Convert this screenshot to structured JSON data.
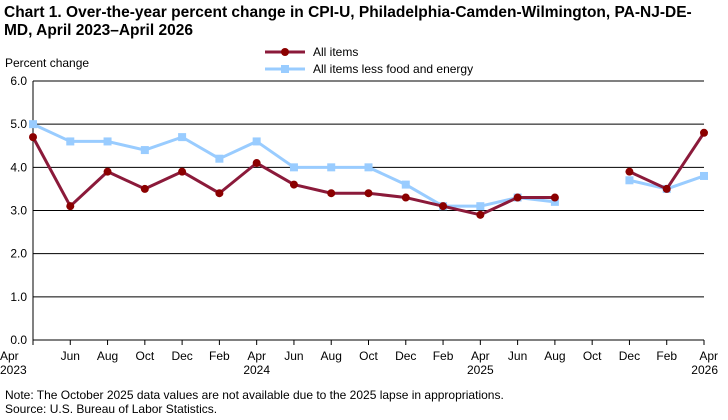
{
  "chart_data": {
    "type": "line",
    "title": "Chart 1. Over-the-year percent change in CPI-U, Philadelphia-Camden-Wilmington,  PA-NJ-DE-MD, April 2023–April  2026",
    "ylabel": "Percent change",
    "xlabel": "",
    "ylim": [
      0.0,
      6.0
    ],
    "yticks": [
      "0.0",
      "1.0",
      "2.0",
      "3.0",
      "4.0",
      "5.0",
      "6.0"
    ],
    "grid": true,
    "legend_placement": "top-center",
    "x_tick_labels": [
      "Apr",
      "Jun",
      "Aug",
      "Oct",
      "Dec",
      "Feb",
      "Apr",
      "Jun",
      "Aug",
      "Oct",
      "Dec",
      "Feb",
      "Apr",
      "Jun",
      "Aug",
      "Oct",
      "Dec",
      "Feb",
      "Apr"
    ],
    "year_labels": [
      {
        "tick_index": 0,
        "label": "2023"
      },
      {
        "tick_index": 6,
        "label": "2024"
      },
      {
        "tick_index": 12,
        "label": "2025"
      },
      {
        "tick_index": 18,
        "label": "2026"
      }
    ],
    "x": [
      "2023-04",
      "2023-06",
      "2023-08",
      "2023-10",
      "2023-12",
      "2024-02",
      "2024-04",
      "2024-06",
      "2024-08",
      "2024-10",
      "2024-12",
      "2025-02",
      "2025-04",
      "2025-06",
      "2025-08",
      "2025-10",
      "2025-12",
      "2026-02",
      "2026-04"
    ],
    "series": [
      {
        "name": "All items",
        "color": "#8b1a3a",
        "marker_color": "#8b0000",
        "marker": "circle",
        "values": [
          4.7,
          3.1,
          3.9,
          3.5,
          3.9,
          3.4,
          4.1,
          3.6,
          3.4,
          3.4,
          3.3,
          3.1,
          2.9,
          3.3,
          3.3,
          null,
          3.9,
          3.5,
          4.8
        ]
      },
      {
        "name": "All items less food and energy",
        "color": "#99ccff",
        "marker_color": "#99ccff",
        "marker": "square",
        "values": [
          5.0,
          4.6,
          4.6,
          4.4,
          4.7,
          4.2,
          4.6,
          4.0,
          4.0,
          4.0,
          3.6,
          3.1,
          3.1,
          3.3,
          3.2,
          null,
          3.7,
          3.5,
          3.8
        ]
      }
    ]
  },
  "note": "Note: The October 2025 data values  are not available  due to the 2025 lapse in appropriations.",
  "source": "Source: U.S. Bureau of Labor Statistics."
}
